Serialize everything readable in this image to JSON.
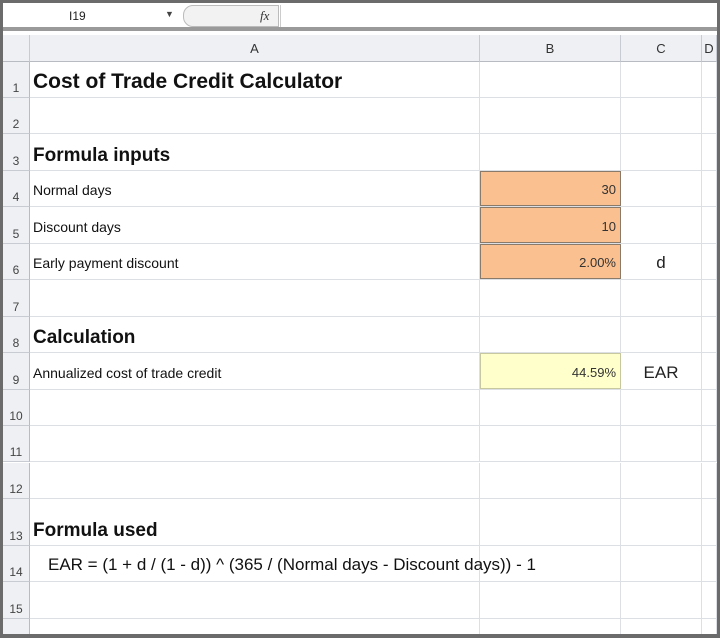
{
  "formula_bar": {
    "name_box": "I19",
    "fx_label": "fx",
    "formula": ""
  },
  "columns": [
    "A",
    "B",
    "C",
    "D"
  ],
  "rows": [
    {
      "n": "1",
      "a": "Cost of Trade Credit Calculator",
      "style": "big"
    },
    {
      "n": "2",
      "a": ""
    },
    {
      "n": "3",
      "a": "Formula inputs",
      "style": "mid"
    },
    {
      "n": "4",
      "a": "Normal days",
      "b": "30",
      "input": true
    },
    {
      "n": "5",
      "a": "Discount days",
      "b": "10",
      "input": true
    },
    {
      "n": "6",
      "a": "Early payment discount",
      "b": "2.00%",
      "c": "d",
      "input": true
    },
    {
      "n": "7",
      "a": ""
    },
    {
      "n": "8",
      "a": "Calculation",
      "style": "mid"
    },
    {
      "n": "9",
      "a": "Annualized cost of trade credit",
      "b": "44.59%",
      "c": "EAR",
      "output": true
    },
    {
      "n": "10",
      "a": ""
    },
    {
      "n": "11",
      "a": ""
    },
    {
      "n": "12",
      "a": ""
    },
    {
      "n": "13",
      "a": "Formula used",
      "style": "mid"
    },
    {
      "n": "14",
      "a": "EAR = (1 + d / (1 - d)) ^ (365 / (Normal days - Discount days)) - 1",
      "style": "formula"
    },
    {
      "n": "15",
      "a": ""
    }
  ],
  "colors": {
    "input_fill": "#fac090",
    "output_fill": "#ffffcc"
  }
}
